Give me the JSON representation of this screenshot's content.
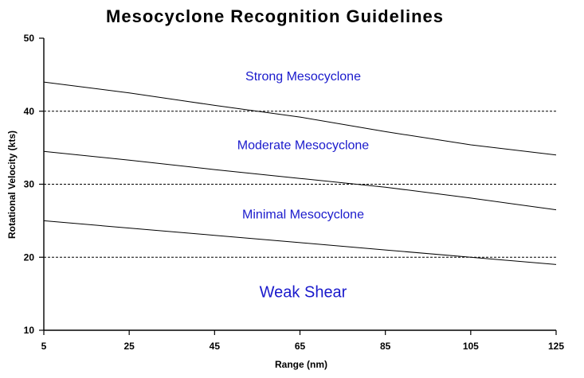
{
  "chart_data": {
    "type": "line",
    "title": "Mesocyclone Recognition Guidelines",
    "xlabel": "Range (nm)",
    "ylabel": "Rotational Velocity (kts)",
    "x_tick_labels": [
      "5",
      "25",
      "45",
      "65",
      "85",
      "105",
      "125"
    ],
    "y_ticks": [
      10,
      20,
      30,
      40,
      50
    ],
    "xlim": [
      5,
      125
    ],
    "ylim": [
      10,
      50
    ],
    "grid_y": [
      20,
      30,
      40
    ],
    "series": [
      {
        "x": [
          5,
          25,
          45,
          65,
          85,
          105,
          125
        ],
        "values": [
          44,
          42.5,
          40.8,
          39.2,
          37.2,
          35.4,
          34
        ]
      },
      {
        "x": [
          5,
          25,
          45,
          65,
          85,
          105,
          125
        ],
        "values": [
          34.5,
          33.3,
          32.0,
          30.8,
          29.6,
          28.1,
          26.5
        ]
      },
      {
        "x": [
          5,
          25,
          45,
          65,
          85,
          105,
          125
        ],
        "values": [
          25,
          24.0,
          23.0,
          22.0,
          21.0,
          20.0,
          19
        ]
      }
    ],
    "annotations": [
      {
        "text": "Strong Mesocyclone",
        "x": 65,
        "y": 44.2,
        "size": "normal"
      },
      {
        "text": "Moderate Mesocyclone",
        "x": 65,
        "y": 34.8,
        "size": "normal"
      },
      {
        "text": "Minimal Mesocyclone",
        "x": 65,
        "y": 25.3,
        "size": "normal"
      },
      {
        "text": "Weak Shear",
        "x": 65,
        "y": 14.5,
        "size": "large"
      }
    ],
    "colors": {
      "lines": "#000000",
      "annotations": "#1a1acc"
    }
  }
}
